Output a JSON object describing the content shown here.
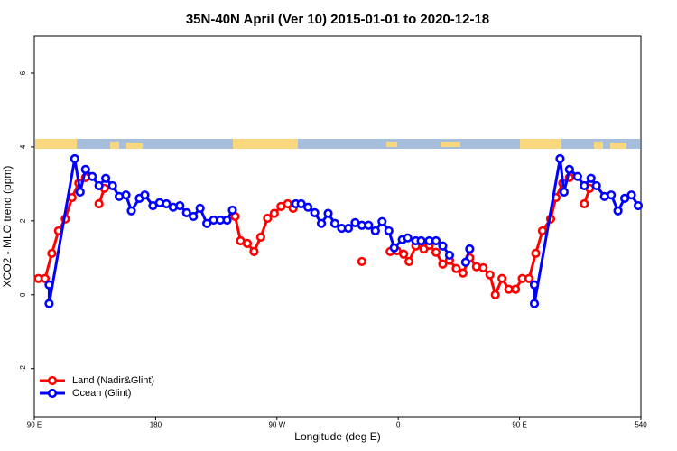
{
  "chart_data": {
    "type": "line",
    "title": "35N-40N April (Ver 10)   2015-01-01 to 2020-12-18",
    "x_label": "Longitude (deg E)",
    "y_label": "XCO2 - MLO trend (ppm)",
    "xlim": [
      90,
      540
    ],
    "ylim": [
      -3.3,
      7
    ],
    "xticks": [
      {
        "value": 90,
        "label": "90 E"
      },
      180,
      {
        "value": 270,
        "label": "90 W"
      },
      {
        "value": 360,
        "label": "0"
      },
      {
        "value": 450,
        "label": "90 E"
      },
      540
    ],
    "yticks": [
      -2,
      0,
      2,
      4,
      6
    ],
    "legend": "bottom-left",
    "series": [
      {
        "name": "Land (Nadir&Glint)",
        "color": "#ff0000",
        "x": [
          93,
          98,
          103,
          108,
          113,
          118,
          123,
          128,
          133,
          138,
          142,
          192,
          239,
          243,
          248,
          253,
          258,
          263,
          268,
          273,
          278,
          282,
          306,
          333,
          343,
          354,
          359,
          364,
          368,
          373,
          379,
          383,
          388,
          393,
          398,
          403,
          408,
          413,
          418,
          423,
          428,
          432,
          437,
          442,
          447,
          452,
          457,
          462,
          467,
          473,
          477,
          482,
          487,
          493,
          498,
          502
        ],
        "values": [
          0.44,
          0.44,
          1.12,
          1.73,
          2.05,
          2.63,
          3.02,
          3.17,
          null,
          2.46,
          2.88,
          null,
          2.12,
          1.46,
          1.39,
          1.17,
          1.56,
          2.07,
          2.2,
          2.39,
          2.46,
          2.34,
          null,
          0.9,
          null,
          1.17,
          1.19,
          1.1,
          0.9,
          1.32,
          1.24,
          1.34,
          1.15,
          0.83,
          0.93,
          0.71,
          0.59,
          1.0,
          0.76,
          0.73,
          0.54,
          0.0,
          0.44,
          0.15,
          0.15,
          0.44,
          0.44,
          1.12,
          1.73,
          2.05,
          2.63,
          3.02,
          3.17,
          null,
          2.46,
          2.88
        ]
      },
      {
        "name": "Ocean (Glint)",
        "color": "#0000ff",
        "x": [
          101,
          101,
          120,
          124,
          128,
          133,
          138,
          143,
          148,
          153,
          158,
          162,
          168,
          172,
          178,
          183,
          188,
          193,
          198,
          203,
          208,
          213,
          218,
          223,
          228,
          233,
          237,
          261,
          284,
          288,
          293,
          298,
          303,
          308,
          313,
          318,
          323,
          328,
          333,
          338,
          343,
          348,
          353,
          357,
          363,
          367,
          373,
          377,
          383,
          388,
          393,
          398,
          404,
          410,
          413,
          436,
          461,
          461,
          480,
          483,
          487,
          493,
          498,
          503,
          507,
          513,
          518,
          523,
          528,
          533,
          538
        ],
        "values": [
          0.27,
          -0.24,
          3.68,
          2.78,
          3.39,
          3.2,
          2.95,
          3.15,
          2.95,
          2.66,
          2.7,
          2.27,
          2.61,
          2.7,
          2.41,
          2.49,
          2.46,
          2.37,
          2.41,
          2.22,
          2.12,
          2.34,
          1.93,
          2.02,
          2.02,
          2.02,
          2.29,
          null,
          2.46,
          2.46,
          2.37,
          2.22,
          1.93,
          2.2,
          1.93,
          1.8,
          1.8,
          1.95,
          1.88,
          1.88,
          1.73,
          1.98,
          1.73,
          1.27,
          1.49,
          1.54,
          1.46,
          1.46,
          1.46,
          1.46,
          1.32,
          1.07,
          null,
          0.88,
          1.24,
          null,
          0.27,
          -0.24,
          3.68,
          2.78,
          3.39,
          3.2,
          2.95,
          3.15,
          2.95,
          2.66,
          2.7,
          2.27,
          2.61,
          2.7,
          2.41
        ]
      }
    ]
  }
}
